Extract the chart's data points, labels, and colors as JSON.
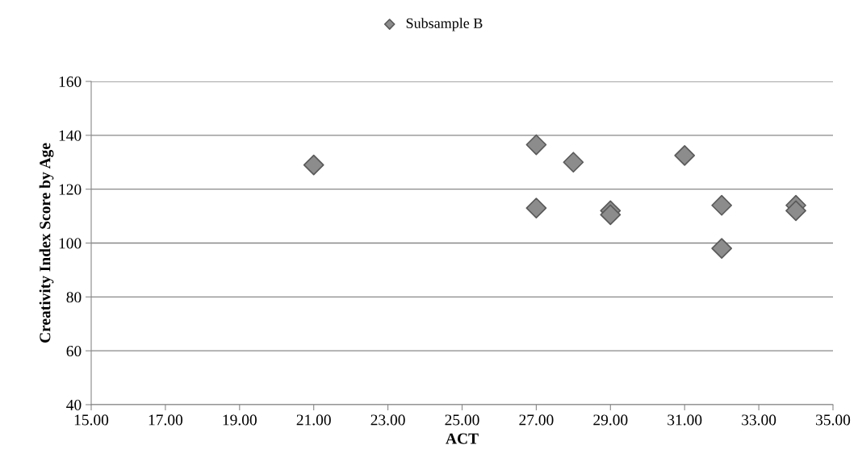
{
  "chart_data": {
    "type": "scatter",
    "xlabel": "ACT",
    "ylabel": "Creativity Index Score by Age",
    "x": [
      21,
      27,
      27,
      28,
      29,
      29,
      31,
      32,
      32,
      34,
      34
    ],
    "series": [
      {
        "name": "Subsample B",
        "color": "#8c8c8c",
        "values": [
          129,
          136.5,
          113,
          130,
          112,
          110.5,
          132.5,
          114,
          98,
          114,
          112
        ]
      }
    ],
    "xlim": [
      15,
      35
    ],
    "xticks": [
      {
        "value": 15,
        "label": "15.00"
      },
      {
        "value": 17,
        "label": "17.00"
      },
      {
        "value": 19,
        "label": "19.00"
      },
      {
        "value": 21,
        "label": "21.00"
      },
      {
        "value": 23,
        "label": "23.00"
      },
      {
        "value": 25,
        "label": "25.00"
      },
      {
        "value": 27,
        "label": "27.00"
      },
      {
        "value": 29,
        "label": "29.00"
      },
      {
        "value": 31,
        "label": "31.00"
      },
      {
        "value": 33,
        "label": "33.00"
      },
      {
        "value": 35,
        "label": "35.00"
      }
    ],
    "ylim": [
      40,
      160
    ],
    "yticks": [
      40,
      60,
      80,
      100,
      120,
      140,
      160
    ],
    "grid": "y",
    "legend": "top",
    "marker": "diamond"
  }
}
